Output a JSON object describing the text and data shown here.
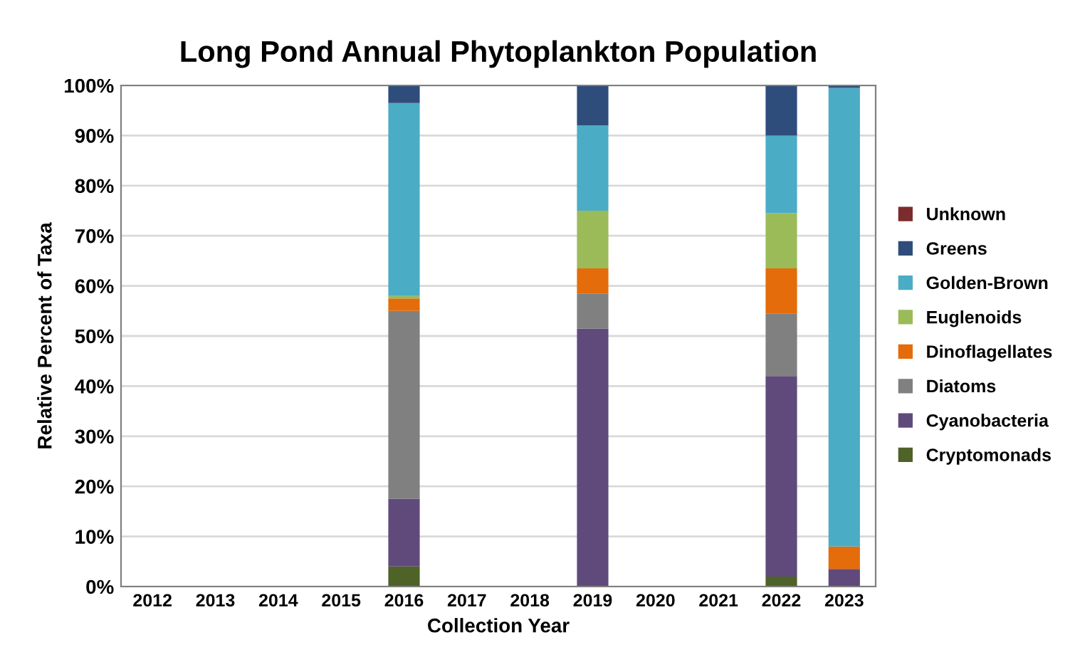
{
  "chart_data": {
    "type": "bar",
    "stacked": true,
    "title": "Long Pond Annual Phytoplankton Population",
    "xlabel": "Collection Year",
    "ylabel": "Relative Percent of Taxa",
    "categories": [
      "2012",
      "2013",
      "2014",
      "2015",
      "2016",
      "2017",
      "2018",
      "2019",
      "2020",
      "2021",
      "2022",
      "2023"
    ],
    "series": [
      {
        "name": "Cryptomonads",
        "color": "#4f6228",
        "values": [
          0,
          0,
          0,
          0,
          4,
          0,
          0,
          0,
          0,
          0,
          2,
          0
        ]
      },
      {
        "name": "Cyanobacteria",
        "color": "#604a7b",
        "values": [
          0,
          0,
          0,
          0,
          13.5,
          0,
          0,
          51.5,
          0,
          0,
          40,
          3.5
        ]
      },
      {
        "name": "Diatoms",
        "color": "#808080",
        "values": [
          0,
          0,
          0,
          0,
          37.5,
          0,
          0,
          7,
          0,
          0,
          12.5,
          0
        ]
      },
      {
        "name": "Dinoflagellates",
        "color": "#e46c0a",
        "values": [
          0,
          0,
          0,
          0,
          2.5,
          0,
          0,
          5,
          0,
          0,
          9,
          4.5
        ]
      },
      {
        "name": "Euglenoids",
        "color": "#9bbb59",
        "values": [
          0,
          0,
          0,
          0,
          0.5,
          0,
          0,
          11.5,
          0,
          0,
          11,
          0
        ]
      },
      {
        "name": "Golden-Brown",
        "color": "#4bacc6",
        "values": [
          0,
          0,
          0,
          0,
          38.5,
          0,
          0,
          17,
          0,
          0,
          15.5,
          91.5
        ]
      },
      {
        "name": "Greens",
        "color": "#2e4d7b",
        "values": [
          0,
          0,
          0,
          0,
          3.5,
          0,
          0,
          8,
          0,
          0,
          10,
          0.5
        ]
      },
      {
        "name": "Unknown",
        "color": "#7b2c2c",
        "values": [
          0,
          0,
          0,
          0,
          0,
          0,
          0,
          0,
          0,
          0,
          0,
          0
        ]
      }
    ],
    "ylim": [
      0,
      100
    ],
    "yticks": [
      {
        "value": 0,
        "label": "0%"
      },
      {
        "value": 10,
        "label": "10%"
      },
      {
        "value": 20,
        "label": "20%"
      },
      {
        "value": 30,
        "label": "30%"
      },
      {
        "value": 40,
        "label": "40%"
      },
      {
        "value": 50,
        "label": "50%"
      },
      {
        "value": 60,
        "label": "60%"
      },
      {
        "value": 70,
        "label": "70%"
      },
      {
        "value": 80,
        "label": "80%"
      },
      {
        "value": 90,
        "label": "90%"
      },
      {
        "value": 100,
        "label": "100%"
      }
    ],
    "grid": "y",
    "legend": "right"
  }
}
